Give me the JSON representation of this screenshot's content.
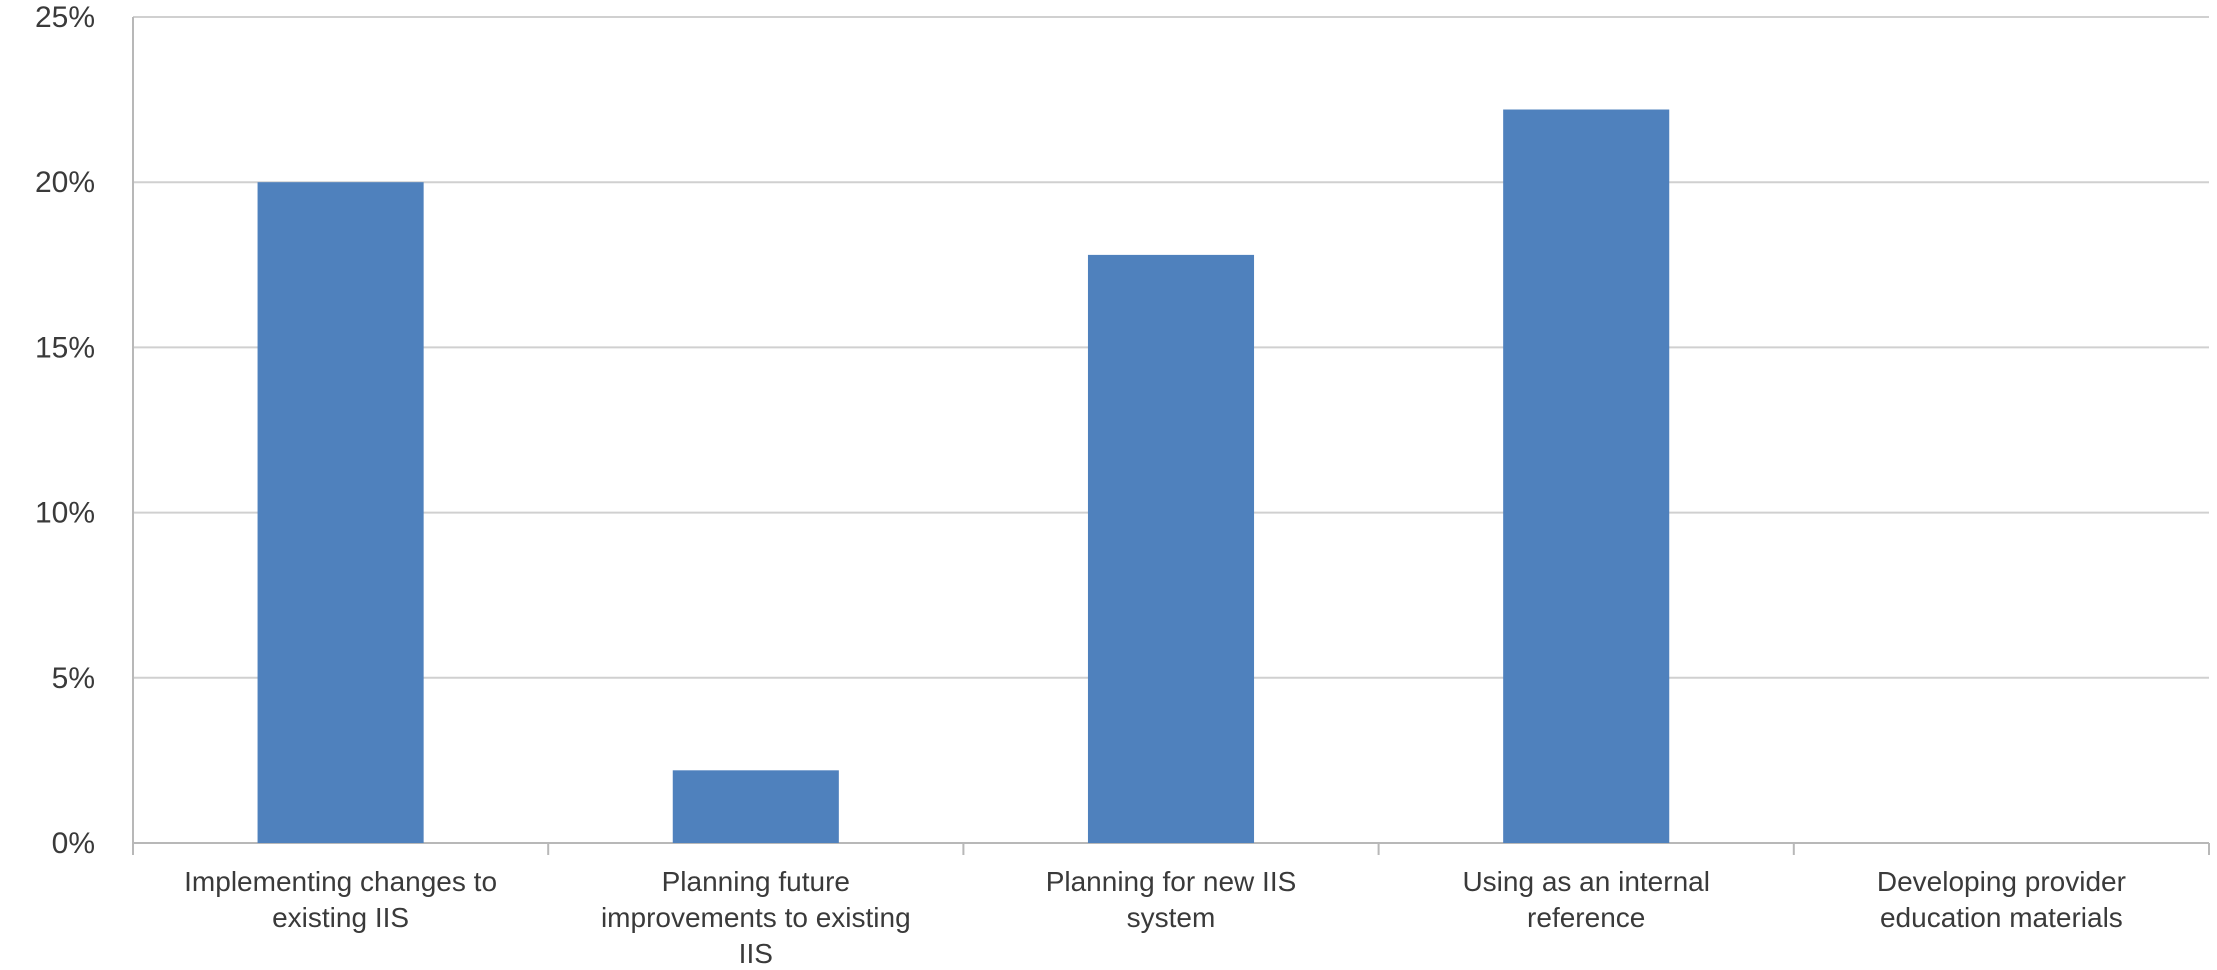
{
  "chart_data": {
    "type": "bar",
    "title": "",
    "xlabel": "",
    "ylabel": "",
    "categories": [
      [
        "Implementing changes to",
        "existing IIS"
      ],
      [
        "Planning future",
        "improvements to existing",
        "IIS"
      ],
      [
        "Planning for new IIS",
        "system"
      ],
      [
        "Using as an internal",
        "reference"
      ],
      [
        "Developing provider",
        "education  materials"
      ]
    ],
    "values": [
      20.0,
      2.2,
      17.8,
      22.2,
      0.0
    ],
    "ylim": [
      0,
      25
    ],
    "y_ticks": [
      0,
      5,
      10,
      15,
      20,
      25
    ],
    "y_tick_labels": [
      "0%",
      "5%",
      "10%",
      "15%",
      "20%",
      "25%"
    ],
    "grid": true,
    "bar_color": "#4f81bd"
  }
}
